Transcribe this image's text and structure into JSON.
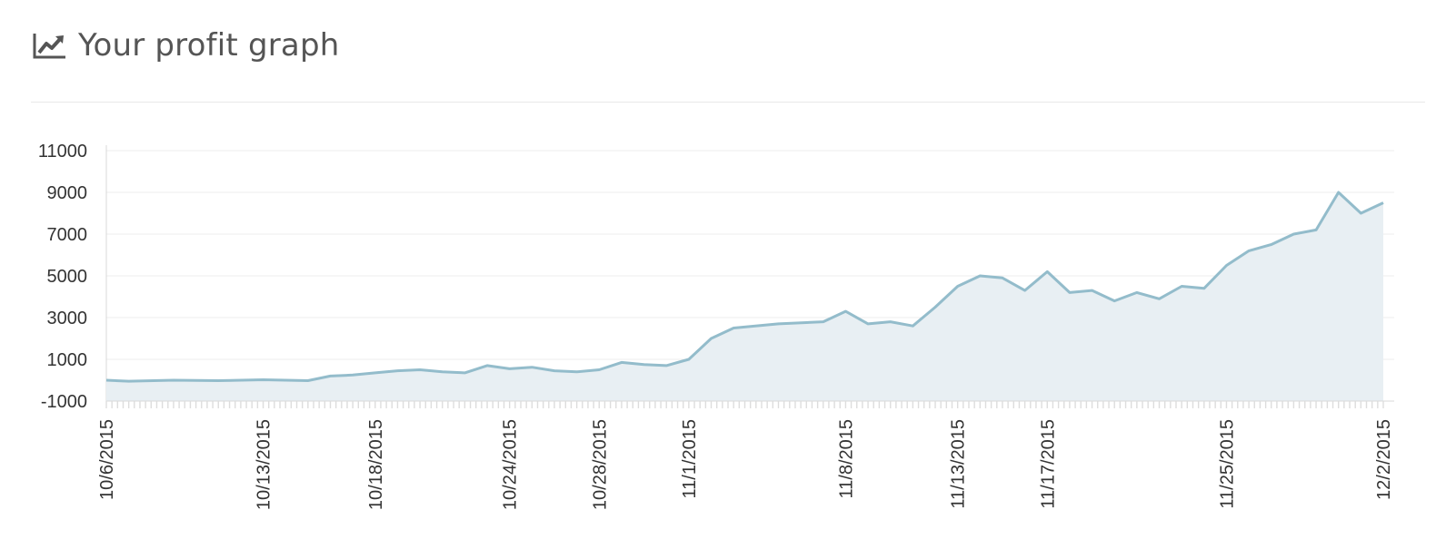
{
  "header": {
    "title": "Your profit graph",
    "icon": "line-chart-icon"
  },
  "colors": {
    "line": "#93bccb",
    "area": "#e8eff3",
    "grid": "#eeeeee",
    "text": "#555555"
  },
  "chart_data": {
    "type": "area",
    "title": "Your profit graph",
    "xlabel": "",
    "ylabel": "",
    "ylim": [
      -1000,
      11000
    ],
    "yticks": [
      -1000,
      1000,
      3000,
      5000,
      7000,
      9000,
      11000
    ],
    "ytick_labels": [
      "-1000",
      "1000",
      "3000",
      "5000",
      "7000",
      "9000",
      "11000"
    ],
    "xticks": [
      "10/6/2015",
      "10/13/2015",
      "10/18/2015",
      "10/24/2015",
      "10/28/2015",
      "11/1/2015",
      "11/8/2015",
      "11/13/2015",
      "11/17/2015",
      "11/25/2015",
      "12/2/2015"
    ],
    "grid": true,
    "series": [
      {
        "x": [
          "10/6/2015",
          "10/7/2015",
          "10/9/2015",
          "10/11/2015",
          "10/13/2015",
          "10/15/2015",
          "10/16/2015",
          "10/17/2015",
          "10/18/2015",
          "10/19/2015",
          "10/20/2015",
          "10/21/2015",
          "10/22/2015",
          "10/23/2015",
          "10/24/2015",
          "10/25/2015",
          "10/26/2015",
          "10/27/2015",
          "10/28/2015",
          "10/29/2015",
          "10/30/2015",
          "10/31/2015",
          "11/1/2015",
          "11/2/2015",
          "11/3/2015",
          "11/5/2015",
          "11/7/2015",
          "11/8/2015",
          "11/9/2015",
          "11/10/2015",
          "11/11/2015",
          "11/12/2015",
          "11/13/2015",
          "11/14/2015",
          "11/15/2015",
          "11/16/2015",
          "11/17/2015",
          "11/18/2015",
          "11/19/2015",
          "11/20/2015",
          "11/21/2015",
          "11/22/2015",
          "11/23/2015",
          "11/24/2015",
          "11/25/2015",
          "11/26/2015",
          "11/27/2015",
          "11/28/2015",
          "11/29/2015",
          "11/30/2015",
          "12/1/2015",
          "12/2/2015"
        ],
        "values": [
          0,
          -50,
          0,
          -20,
          20,
          -20,
          200,
          250,
          350,
          450,
          500,
          400,
          350,
          700,
          550,
          620,
          450,
          400,
          500,
          850,
          750,
          700,
          1000,
          2000,
          2500,
          2700,
          2800,
          3300,
          2700,
          2800,
          2600,
          3500,
          4500,
          5000,
          4900,
          4300,
          5200,
          4200,
          4300,
          3800,
          4200,
          3900,
          4500,
          4400,
          5500,
          6200,
          6500,
          7000,
          7200,
          9000,
          8000,
          8500
        ]
      }
    ]
  }
}
